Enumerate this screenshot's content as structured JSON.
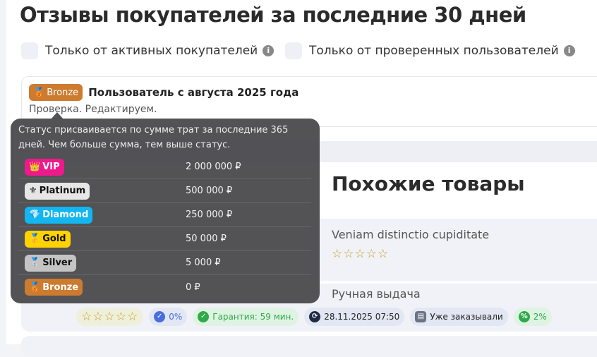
{
  "page_title": "Отзывы покупателей за последние 30 дней",
  "filters": [
    {
      "label": "Только от активных покупателей",
      "checked": false
    },
    {
      "label": "Только от проверенных пользователей",
      "checked": false
    }
  ],
  "review": {
    "badge": "Bronze",
    "title": "Пользователь с августа 2025 года",
    "text": "Проверка. Редактируем."
  },
  "similar": {
    "title": "Похожие товары",
    "products": [
      {
        "title": "Veniam distinctio cupiditate",
        "stars": "☆☆☆☆☆"
      },
      {
        "title": "Ручная выдача",
        "stars": "☆☆☆☆☆"
      }
    ],
    "chips": {
      "verified": "0%",
      "guarantee": "Гарантия: 59 мин.",
      "date": "28.11.2025 07:50",
      "ordered": "Уже заказывали",
      "discount": "2%"
    }
  },
  "tooltip": {
    "text": "Статус присваивается по сумме трат за последние 365 дней. Чем больше сумма, тем выше статус.",
    "tiers": [
      {
        "name": "VIP",
        "icon": "👑",
        "amount": "2 000 000 ₽",
        "bg": "#f0198c",
        "fg": "#ffffff"
      },
      {
        "name": "Platinum",
        "icon": "⚜",
        "amount": "500 000 ₽",
        "bg": "#e6e6e6",
        "fg": "#111111"
      },
      {
        "name": "Diamond",
        "icon": "💎",
        "amount": "250 000 ₽",
        "bg": "#12b6f0",
        "fg": "#ffffff"
      },
      {
        "name": "Gold",
        "icon": "🥇",
        "amount": "50 000 ₽",
        "bg": "#ffd200",
        "fg": "#111111"
      },
      {
        "name": "Silver",
        "icon": "🥈",
        "amount": "5 000 ₽",
        "bg": "#c4c4c4",
        "fg": "#111111"
      },
      {
        "name": "Bronze",
        "icon": "🥉",
        "amount": "0 ₽",
        "bg": "#cd7b2e",
        "fg": "#ffffff"
      }
    ]
  }
}
